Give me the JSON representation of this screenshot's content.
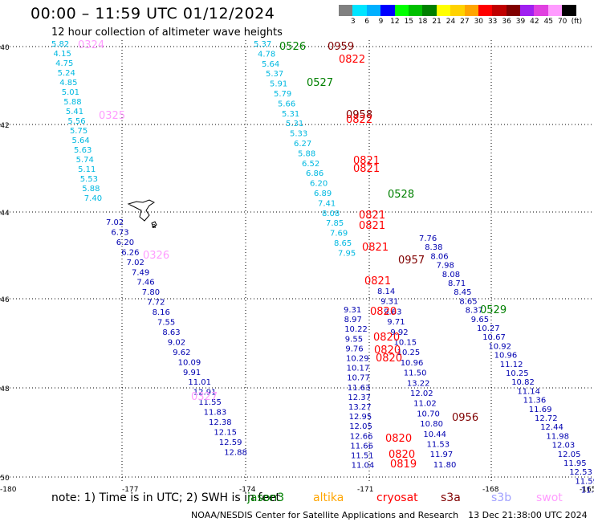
{
  "header": {
    "title": "00:00 – 11:59 UTC 01/12/2024",
    "subtitle": "12 hour collection of altimeter wave heights"
  },
  "colorbar": {
    "unit_label": "(ft)",
    "ticks": [
      "3",
      "6",
      "9",
      "12",
      "15",
      "18",
      "21",
      "24",
      "27",
      "30",
      "33",
      "36",
      "39",
      "42",
      "45",
      "70"
    ],
    "colors": [
      "#808080",
      "#00e5ff",
      "#00b0ff",
      "#0000ff",
      "#00ff00",
      "#00c000",
      "#008000",
      "#ffff00",
      "#ffd200",
      "#ffa500",
      "#ff0000",
      "#c00000",
      "#800000",
      "#a020f0",
      "#e040e0",
      "#ff9cff",
      "#000000"
    ]
  },
  "map": {
    "lat_labels": [
      "-40",
      "-42",
      "-44",
      "-46",
      "-48",
      "-50"
    ],
    "lon_labels": [
      "-180",
      "-177",
      "-174",
      "-171",
      "-168",
      "-165"
    ],
    "island_labels": [
      "a"
    ]
  },
  "tracks": [
    {
      "name": "track-1",
      "color": "#00b8e0",
      "values": [
        "5.82",
        "4.15",
        "4.75",
        "5.24",
        "4.85",
        "5.01",
        "5.88",
        "5.41",
        "5.56",
        "5.75",
        "5.64",
        "5.63",
        "5.74",
        "5.11",
        "5.53",
        "5.88",
        "7.40"
      ]
    },
    {
      "name": "track-1-south",
      "color": "#0000b0",
      "values": [
        "7.02",
        "6.73",
        "6.20",
        "6.26",
        "7.02",
        "7.49",
        "7.46",
        "7.80",
        "7.72",
        "8.16",
        "7.55",
        "8.63",
        "9.02",
        "9.62",
        "10.09",
        "9.91",
        "11.01",
        "12.91",
        "11.55",
        "11.83",
        "12.38",
        "12.15",
        "12.59",
        "12.88"
      ]
    },
    {
      "name": "track-2",
      "color": "#00b8e0",
      "values": [
        "5.37",
        "4.78",
        "5.64",
        "5.37",
        "5.91",
        "5.79",
        "5.66",
        "5.31",
        "5.31",
        "5.33",
        "6.27",
        "5.88",
        "6.52",
        "6.86",
        "6.20",
        "6.89",
        "7.41",
        "8.08",
        "7.85",
        "7.69",
        "8.65",
        "7.95"
      ]
    },
    {
      "name": "track-3",
      "color": "#0000b0",
      "values": [
        "9.31",
        "8.97",
        "10.22",
        "9.55",
        "9.76",
        "10.29",
        "10.17",
        "10.77",
        "11.63",
        "12.37",
        "13.27",
        "12.95",
        "12.05",
        "12.66",
        "11.66",
        "11.51",
        "11.04"
      ]
    },
    {
      "name": "track-4",
      "color": "#0000b0",
      "values": [
        "8.14",
        "9.31",
        "9.63",
        "9.71",
        "9.92",
        "10.15",
        "10.25",
        "10.96",
        "11.50",
        "13.22",
        "12.02",
        "11.02",
        "10.70",
        "10.80",
        "10.44",
        "11.53",
        "11.97",
        "11.80"
      ]
    },
    {
      "name": "track-5",
      "color": "#0000b0",
      "values": [
        "7.76",
        "8.38",
        "8.06",
        "7.98",
        "8.08",
        "8.71",
        "8.45",
        "8.65",
        "8.37",
        "9.65",
        "10.27",
        "10.67",
        "10.92",
        "10.96",
        "11.12",
        "10.25",
        "10.82",
        "11.14",
        "11.36",
        "11.69",
        "12.72",
        "12.44",
        "11.98",
        "12.03",
        "12.05",
        "11.95",
        "12.53",
        "11.59",
        "11.7"
      ]
    }
  ],
  "time_labels": [
    {
      "t": "0324",
      "sat": "swot"
    },
    {
      "t": "0325",
      "sat": "swot"
    },
    {
      "t": "0326",
      "sat": "swot"
    },
    {
      "t": "0327",
      "sat": "swot"
    },
    {
      "t": "0526",
      "sat": "jason3"
    },
    {
      "t": "0527",
      "sat": "jason3"
    },
    {
      "t": "0528",
      "sat": "jason3"
    },
    {
      "t": "0529",
      "sat": "jason3"
    },
    {
      "t": "0959",
      "sat": "s3a"
    },
    {
      "t": "0958",
      "sat": "s3a"
    },
    {
      "t": "0957",
      "sat": "s3a"
    },
    {
      "t": "0956",
      "sat": "s3a"
    },
    {
      "t": "0822",
      "sat": "cryosat"
    },
    {
      "t": "0822",
      "sat": "cryosat"
    },
    {
      "t": "0821",
      "sat": "cryosat"
    },
    {
      "t": "0821",
      "sat": "cryosat"
    },
    {
      "t": "0821",
      "sat": "cryosat"
    },
    {
      "t": "0821",
      "sat": "cryosat"
    },
    {
      "t": "0821",
      "sat": "cryosat"
    },
    {
      "t": "0821",
      "sat": "cryosat"
    },
    {
      "t": "0820",
      "sat": "cryosat"
    },
    {
      "t": "0820",
      "sat": "cryosat"
    },
    {
      "t": "0820",
      "sat": "cryosat"
    },
    {
      "t": "0820",
      "sat": "cryosat"
    },
    {
      "t": "0820",
      "sat": "cryosat"
    },
    {
      "t": "0820",
      "sat": "cryosat"
    },
    {
      "t": "0819",
      "sat": "cryosat"
    }
  ],
  "notes": "note:  1) Time is in UTC; 2) SWH is in feet",
  "legend": [
    {
      "label": "jason3",
      "color": "#008000"
    },
    {
      "label": "altika",
      "color": "#ffa500"
    },
    {
      "label": "cryosat",
      "color": "#ff0000"
    },
    {
      "label": "s3a",
      "color": "#800000"
    },
    {
      "label": "s3b",
      "color": "#a0a0ff"
    },
    {
      "label": "swot",
      "color": "#ff9cff"
    }
  ],
  "footer": {
    "org": "NOAA/NESDIS Center for Satellite Applications and Research",
    "timestamp": "13 Dec 21:38:00 UTC 2024"
  }
}
